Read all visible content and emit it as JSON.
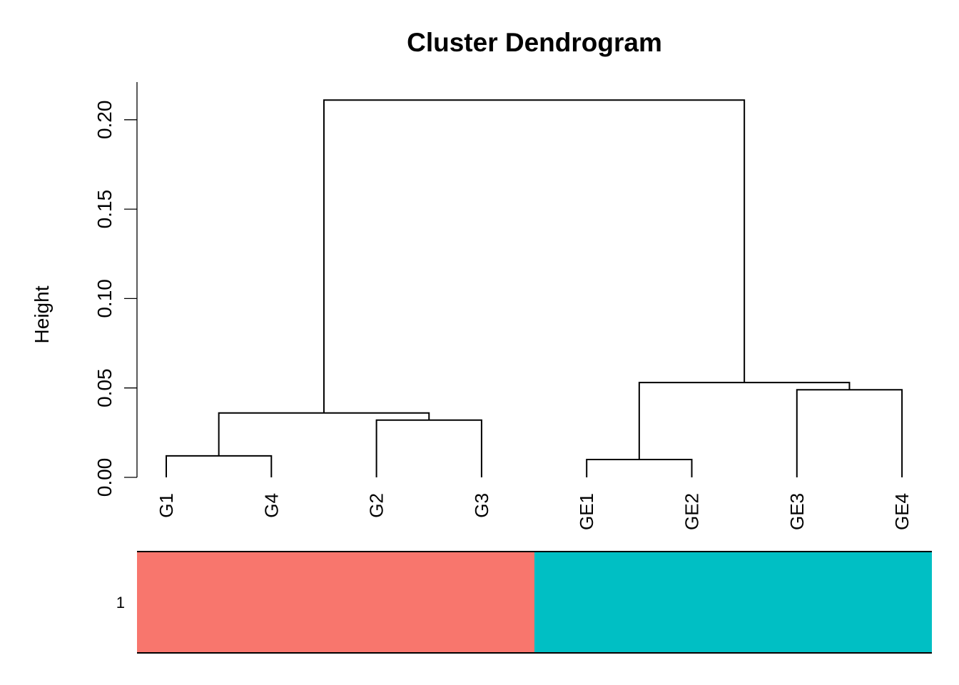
{
  "chart_data": {
    "type": "dendrogram",
    "title": "Cluster Dendrogram",
    "ylabel": "Height",
    "ylim": [
      0,
      0.22
    ],
    "yticks": [
      0.0,
      0.05,
      0.1,
      0.15,
      0.2
    ],
    "ytick_labels": [
      "0.00",
      "0.05",
      "0.10",
      "0.15",
      "0.20"
    ],
    "leaves": [
      "G1",
      "G4",
      "G2",
      "G3",
      "GE1",
      "GE2",
      "GE3",
      "GE4"
    ],
    "merges": [
      {
        "left": "G1",
        "right": "G4",
        "height": 0.012
      },
      {
        "left": "G2",
        "right": "G3",
        "height": 0.032
      },
      {
        "left": "GE1",
        "right": "GE2",
        "height": 0.01
      },
      {
        "left": "GE3",
        "right": "GE4",
        "height": 0.049
      },
      {
        "left": 0,
        "right": 1,
        "height": 0.036
      },
      {
        "left": 2,
        "right": 3,
        "height": 0.053
      },
      {
        "left": 4,
        "right": 5,
        "height": 0.211
      }
    ],
    "color_bar": {
      "row_label": "1",
      "segments": [
        {
          "leaves": [
            "G1",
            "G4",
            "G2",
            "G3"
          ],
          "color": "#F8766D"
        },
        {
          "leaves": [
            "GE1",
            "GE2",
            "GE3",
            "GE4"
          ],
          "color": "#00BFC4"
        }
      ]
    }
  }
}
